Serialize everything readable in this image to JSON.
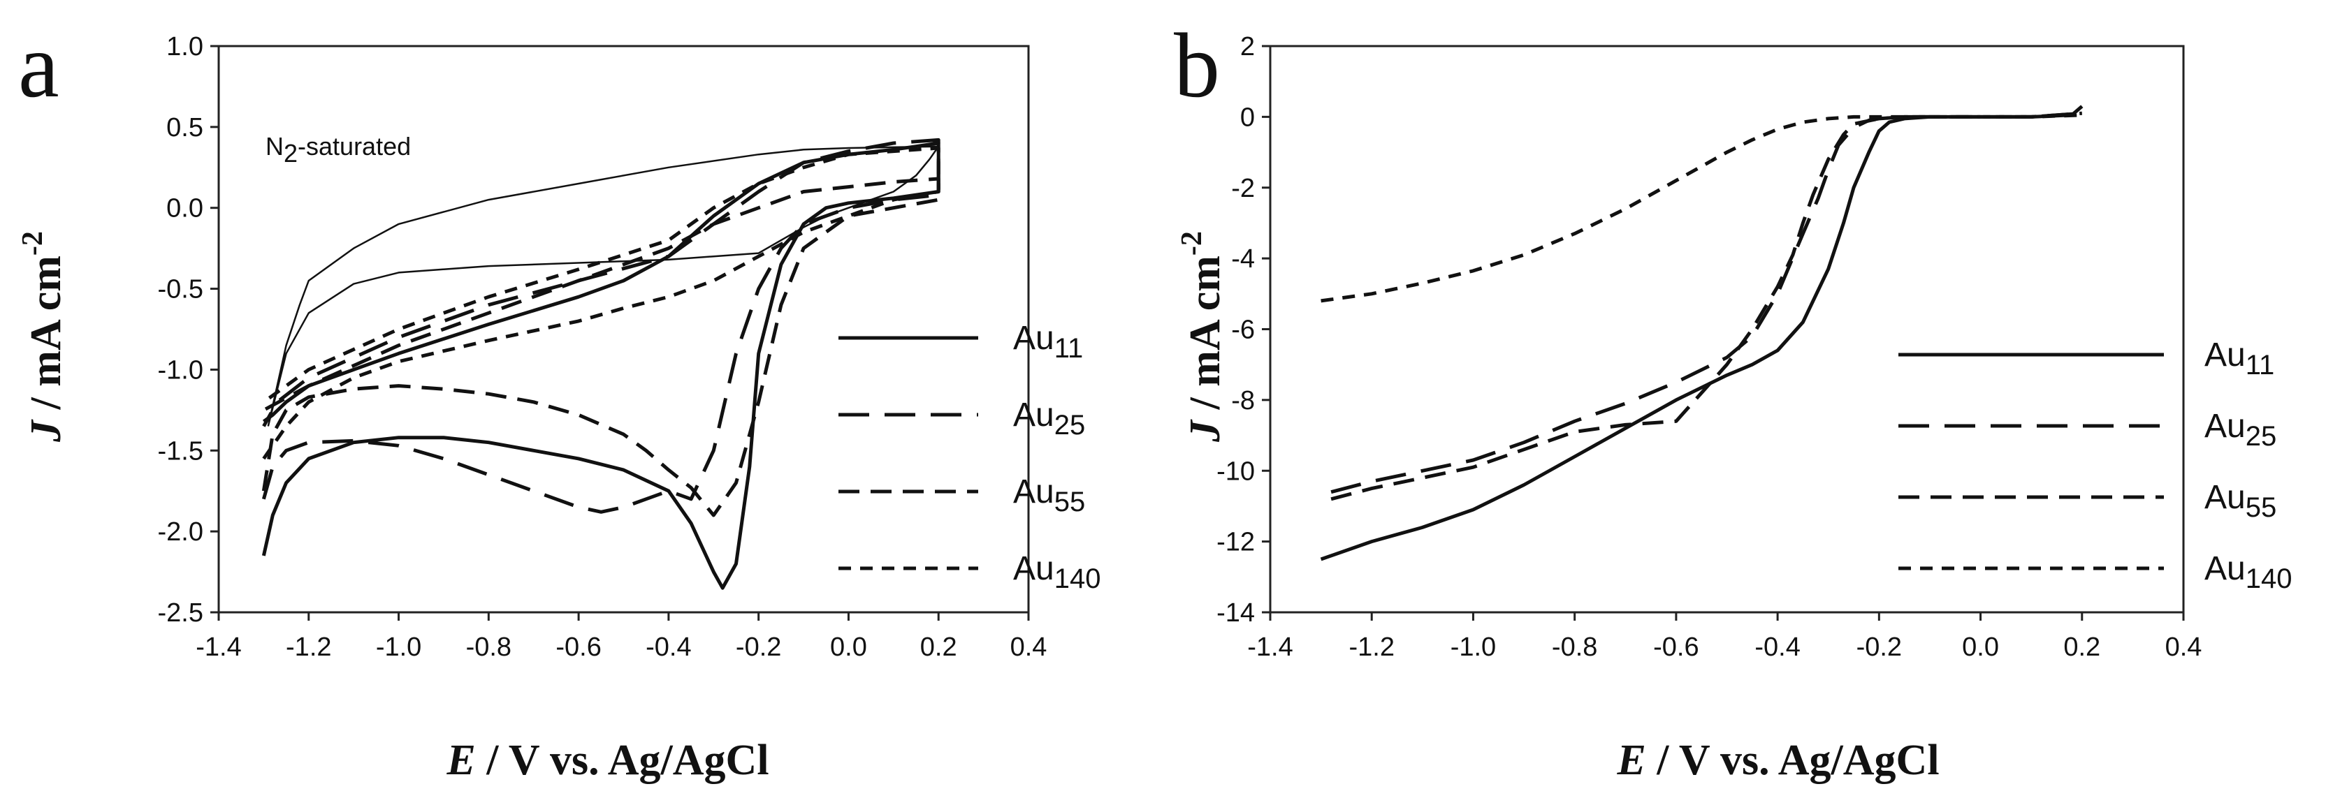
{
  "charts": [
    {
      "panel": "a",
      "type": "line",
      "xlabel_italic": "E",
      "xlabel_rest": " / V vs. Ag/AgCl",
      "ylabel_italic": "J",
      "ylabel_rest": " / mA cm",
      "ylabel_sup": "-2",
      "xlim": [
        -1.4,
        0.4
      ],
      "ylim": [
        -2.5,
        1.0
      ],
      "xticks": [
        "-1.4",
        "-1.2",
        "-1.0",
        "-0.8",
        "-0.6",
        "-0.4",
        "-0.2",
        "0.0",
        "0.2",
        "0.4"
      ],
      "yticks": [
        "1.0",
        "0.5",
        "0.0",
        "-0.5",
        "-1.0",
        "-1.5",
        "-2.0",
        "-2.5"
      ],
      "annotation_main": "N",
      "annotation_sub": "2",
      "annotation_rest": "-saturated",
      "legend": [
        {
          "base": "Au",
          "sub": "11",
          "style": "solid"
        },
        {
          "base": "Au",
          "sub": "25",
          "style": "long-dash"
        },
        {
          "base": "Au",
          "sub": "55",
          "style": "medium-dash"
        },
        {
          "base": "Au",
          "sub": "140",
          "style": "short-dash"
        }
      ],
      "series": [
        {
          "name": "N2-saturated",
          "style": "thin",
          "x": [
            -1.29,
            -1.27,
            -1.25,
            -1.22,
            -1.2,
            -1.1,
            -1.0,
            -0.8,
            -0.6,
            -0.4,
            -0.2,
            -0.1,
            0.0,
            0.2,
            0.18,
            0.15,
            0.1,
            0.0,
            -0.05,
            -0.1,
            -0.15,
            -0.2,
            -0.3,
            -0.4,
            -0.6,
            -0.8,
            -1.0,
            -1.1,
            -1.2,
            -1.25,
            -1.29
          ],
          "y": [
            -1.35,
            -1.1,
            -0.85,
            -0.6,
            -0.45,
            -0.25,
            -0.1,
            0.05,
            0.15,
            0.25,
            0.33,
            0.36,
            0.37,
            0.38,
            0.3,
            0.2,
            0.1,
            0.0,
            -0.05,
            -0.12,
            -0.2,
            -0.28,
            -0.3,
            -0.32,
            -0.34,
            -0.36,
            -0.4,
            -0.47,
            -0.65,
            -0.9,
            -1.35
          ]
        },
        {
          "name": "Au11",
          "style": "solid",
          "x": [
            -1.3,
            -1.28,
            -1.25,
            -1.2,
            -1.1,
            -1.0,
            -0.9,
            -0.8,
            -0.7,
            -0.6,
            -0.5,
            -0.4,
            -0.35,
            -0.3,
            -0.28,
            -0.25,
            -0.22,
            -0.2,
            -0.15,
            -0.1,
            -0.05,
            0.0,
            0.1,
            0.2,
            0.2,
            0.15,
            0.1,
            0.0,
            -0.1,
            -0.2,
            -0.3,
            -0.4,
            -0.5,
            -0.6,
            -0.8,
            -1.0,
            -1.1,
            -1.2,
            -1.25,
            -1.28,
            -1.3
          ],
          "y": [
            -2.15,
            -1.9,
            -1.7,
            -1.55,
            -1.45,
            -1.42,
            -1.42,
            -1.45,
            -1.5,
            -1.55,
            -1.62,
            -1.75,
            -1.95,
            -2.25,
            -2.35,
            -2.2,
            -1.6,
            -0.9,
            -0.35,
            -0.1,
            0.0,
            0.03,
            0.06,
            0.1,
            0.4,
            0.38,
            0.36,
            0.33,
            0.28,
            0.15,
            -0.05,
            -0.3,
            -0.45,
            -0.55,
            -0.72,
            -0.9,
            -1.0,
            -1.1,
            -1.2,
            -1.28,
            -1.32
          ]
        },
        {
          "name": "Au25",
          "style": "long-dash",
          "x": [
            -1.3,
            -1.28,
            -1.25,
            -1.2,
            -1.1,
            -1.0,
            -0.9,
            -0.8,
            -0.7,
            -0.6,
            -0.55,
            -0.5,
            -0.45,
            -0.4,
            -0.35,
            -0.3,
            -0.25,
            -0.2,
            -0.15,
            -0.1,
            0.0,
            0.1,
            0.2,
            0.2,
            0.1,
            0.0,
            -0.1,
            -0.2,
            -0.3,
            -0.4,
            -0.6,
            -0.8,
            -1.0,
            -1.2,
            -1.27,
            -1.3
          ],
          "y": [
            -1.8,
            -1.6,
            -1.5,
            -1.45,
            -1.44,
            -1.47,
            -1.55,
            -1.65,
            -1.75,
            -1.85,
            -1.88,
            -1.85,
            -1.8,
            -1.75,
            -1.8,
            -1.5,
            -0.9,
            -0.5,
            -0.25,
            -0.1,
            0.0,
            0.05,
            0.08,
            0.42,
            0.4,
            0.35,
            0.28,
            0.1,
            -0.1,
            -0.3,
            -0.45,
            -0.6,
            -0.8,
            -1.05,
            -1.2,
            -1.35
          ]
        },
        {
          "name": "Au55",
          "style": "medium-dash",
          "x": [
            -1.3,
            -1.28,
            -1.25,
            -1.2,
            -1.1,
            -1.0,
            -0.9,
            -0.8,
            -0.7,
            -0.6,
            -0.5,
            -0.45,
            -0.4,
            -0.35,
            -0.3,
            -0.25,
            -0.2,
            -0.15,
            -0.1,
            0.0,
            0.2,
            0.2,
            0.1,
            0.0,
            -0.1,
            -0.2,
            -0.3,
            -0.4,
            -0.6,
            -0.8,
            -1.0,
            -1.2,
            -1.3
          ],
          "y": [
            -1.75,
            -1.4,
            -1.25,
            -1.17,
            -1.12,
            -1.1,
            -1.12,
            -1.15,
            -1.2,
            -1.28,
            -1.4,
            -1.5,
            -1.62,
            -1.73,
            -1.9,
            -1.7,
            -1.2,
            -0.6,
            -0.25,
            -0.05,
            0.05,
            0.18,
            0.16,
            0.13,
            0.1,
            0.0,
            -0.1,
            -0.25,
            -0.45,
            -0.65,
            -0.85,
            -1.1,
            -1.25
          ]
        },
        {
          "name": "Au140",
          "style": "short-dash",
          "x": [
            -1.3,
            -1.25,
            -1.2,
            -1.1,
            -1.0,
            -0.8,
            -0.6,
            -0.5,
            -0.4,
            -0.3,
            -0.2,
            -0.1,
            0.0,
            0.1,
            0.2,
            0.2,
            0.1,
            0.0,
            -0.1,
            -0.2,
            -0.3,
            -0.4,
            -0.6,
            -0.8,
            -1.0,
            -1.2,
            -1.3
          ],
          "y": [
            -1.55,
            -1.35,
            -1.2,
            -1.05,
            -0.95,
            -0.82,
            -0.7,
            -0.62,
            -0.55,
            -0.45,
            -0.3,
            -0.15,
            -0.05,
            0.05,
            0.1,
            0.37,
            0.35,
            0.33,
            0.25,
            0.15,
            0.0,
            -0.2,
            -0.38,
            -0.55,
            -0.75,
            -1.0,
            -1.2
          ]
        }
      ]
    },
    {
      "panel": "b",
      "type": "line",
      "xlabel_italic": "E",
      "xlabel_rest": " / V vs. Ag/AgCl",
      "ylabel_italic": "J",
      "ylabel_rest": " / mA cm",
      "ylabel_sup": "-2",
      "xlim": [
        -1.4,
        0.4
      ],
      "ylim": [
        -14,
        2
      ],
      "xticks": [
        "-1.4",
        "-1.2",
        "-1.0",
        "-0.8",
        "-0.6",
        "-0.4",
        "-0.2",
        "0.0",
        "0.2",
        "0.4"
      ],
      "yticks": [
        "2",
        "0",
        "-2",
        "-4",
        "-6",
        "-8",
        "-10",
        "-12",
        "-14"
      ],
      "legend": [
        {
          "base": "Au",
          "sub": "11",
          "style": "solid"
        },
        {
          "base": "Au",
          "sub": "25",
          "style": "long-dash"
        },
        {
          "base": "Au",
          "sub": "55",
          "style": "medium-dash"
        },
        {
          "base": "Au",
          "sub": "140",
          "style": "short-dash"
        }
      ],
      "series": [
        {
          "name": "Au11",
          "style": "solid",
          "x": [
            -1.3,
            -1.2,
            -1.1,
            -1.0,
            -0.9,
            -0.8,
            -0.7,
            -0.6,
            -0.5,
            -0.45,
            -0.4,
            -0.35,
            -0.3,
            -0.27,
            -0.25,
            -0.22,
            -0.2,
            -0.18,
            -0.15,
            -0.1,
            0.0,
            0.1,
            0.18,
            0.2
          ],
          "y": [
            -12.5,
            -12.0,
            -11.6,
            -11.1,
            -10.4,
            -9.6,
            -8.8,
            -8.0,
            -7.3,
            -7.0,
            -6.6,
            -5.8,
            -4.3,
            -3.0,
            -2.0,
            -1.0,
            -0.4,
            -0.15,
            -0.05,
            0.0,
            0.0,
            0.0,
            0.05,
            0.3
          ]
        },
        {
          "name": "Au25",
          "style": "long-dash",
          "x": [
            -1.28,
            -1.2,
            -1.1,
            -1.0,
            -0.9,
            -0.8,
            -0.7,
            -0.6,
            -0.5,
            -0.45,
            -0.4,
            -0.35,
            -0.32,
            -0.3,
            -0.28,
            -0.25,
            -0.22,
            -0.2,
            -0.15,
            -0.1,
            0.0,
            0.1,
            0.2
          ],
          "y": [
            -10.6,
            -10.3,
            -10.0,
            -9.7,
            -9.2,
            -8.6,
            -8.1,
            -7.5,
            -6.8,
            -6.2,
            -5.0,
            -3.3,
            -2.3,
            -1.5,
            -0.8,
            -0.3,
            -0.1,
            -0.05,
            0.0,
            0.0,
            0.0,
            0.0,
            0.1
          ]
        },
        {
          "name": "Au55",
          "style": "medium-dash",
          "x": [
            -1.28,
            -1.2,
            -1.1,
            -1.0,
            -0.9,
            -0.8,
            -0.7,
            -0.6,
            -0.5,
            -0.45,
            -0.4,
            -0.37,
            -0.35,
            -0.33,
            -0.3,
            -0.27,
            -0.25,
            -0.2,
            -0.15,
            -0.1,
            0.0,
            0.1,
            0.2
          ],
          "y": [
            -10.8,
            -10.5,
            -10.2,
            -9.9,
            -9.4,
            -8.9,
            -8.7,
            -8.6,
            -7.0,
            -6.0,
            -4.8,
            -3.9,
            -3.0,
            -2.2,
            -1.2,
            -0.5,
            -0.2,
            -0.05,
            0.0,
            0.0,
            0.0,
            0.0,
            0.1
          ]
        },
        {
          "name": "Au140",
          "style": "short-dash",
          "x": [
            -1.3,
            -1.2,
            -1.1,
            -1.0,
            -0.9,
            -0.8,
            -0.7,
            -0.6,
            -0.5,
            -0.45,
            -0.4,
            -0.35,
            -0.3,
            -0.25,
            -0.2,
            -0.1,
            0.0,
            0.1,
            0.2
          ],
          "y": [
            -5.2,
            -5.0,
            -4.7,
            -4.35,
            -3.9,
            -3.3,
            -2.6,
            -1.8,
            -1.0,
            -0.65,
            -0.35,
            -0.15,
            -0.05,
            0.0,
            0.0,
            0.0,
            0.0,
            0.0,
            0.05
          ]
        }
      ]
    }
  ]
}
